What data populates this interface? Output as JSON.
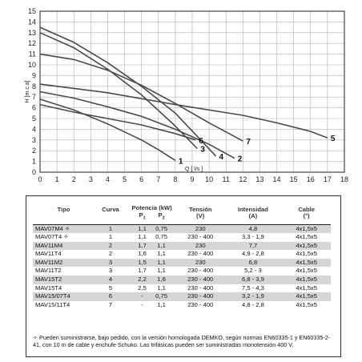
{
  "chart_data": {
    "type": "line",
    "xlabel": "Q [ l/s ]",
    "ylabel": "H [m.c.a]",
    "xlim": [
      0,
      18
    ],
    "ylim": [
      0,
      15
    ],
    "x_ticks": [
      "0",
      "1",
      "2",
      "3",
      "4",
      "5",
      "6",
      "7",
      "8",
      "9",
      "10",
      "11",
      "12",
      "13",
      "14",
      "15",
      "16",
      "17",
      "18"
    ],
    "y_ticks": [
      "0",
      "1",
      "2",
      "3",
      "4",
      "5",
      "6",
      "7",
      "8",
      "9",
      "10",
      "11",
      "12",
      "13",
      "14",
      "15"
    ],
    "grid": true,
    "series": [
      {
        "name": "1",
        "x": [
          0,
          2,
          4,
          6,
          7,
          8.0
        ],
        "y": [
          6.8,
          5.8,
          4.5,
          3.0,
          2.1,
          1.1
        ]
      },
      {
        "name": "2",
        "x": [
          0,
          2,
          4,
          6,
          8,
          10,
          11.5
        ],
        "y": [
          7.5,
          6.9,
          6.1,
          5.2,
          4.0,
          2.6,
          1.3
        ]
      },
      {
        "name": "3",
        "x": [
          0,
          2,
          4,
          6,
          8,
          9.3
        ],
        "y": [
          13.0,
          11.6,
          9.6,
          7.2,
          4.3,
          2.2
        ]
      },
      {
        "name": "4",
        "x": [
          0,
          2,
          4,
          6,
          8,
          10.4
        ],
        "y": [
          13.5,
          12.1,
          10.2,
          8.0,
          5.5,
          1.5
        ]
      },
      {
        "name": "5",
        "x": [
          0,
          4,
          8,
          12,
          14,
          16,
          17.0
        ],
        "y": [
          8.2,
          7.4,
          6.3,
          5.3,
          4.6,
          3.8,
          3.2
        ]
      },
      {
        "name": "6",
        "x": [
          0,
          2,
          4,
          6,
          8,
          9.2
        ],
        "y": [
          6.3,
          5.6,
          5.0,
          4.4,
          3.6,
          3.0
        ]
      },
      {
        "name": "7",
        "x": [
          0,
          2,
          4,
          6,
          8,
          10,
          12.0
        ],
        "y": [
          11.0,
          10.5,
          9.5,
          8.1,
          6.4,
          4.6,
          2.9
        ]
      }
    ],
    "curve_labels": [
      "1",
      "2",
      "3",
      "4",
      "5",
      "6",
      "7"
    ]
  },
  "table": {
    "headers": {
      "tipo": "Tipo",
      "curva": "Curva",
      "potencia": "Potencia (kW)",
      "p1": "P",
      "p1_sub": "1",
      "p2": "P",
      "p2_sub": "2",
      "tension": "Tensión",
      "tension_unit": "(V)",
      "intensidad": "Intensidad",
      "intensidad_unit": "(A)",
      "cable": "Cable",
      "cable_unit": "(°)"
    },
    "rows": [
      {
        "tipo": "MAV07M4 ✧",
        "curva": "1",
        "p1": "1,1",
        "p2": "0,75",
        "tension": "230",
        "intensidad": "4,8",
        "cable": "4x1,5x5"
      },
      {
        "tipo": "MAV07T4 ✧",
        "curva": "1",
        "p1": "1,1",
        "p2": "0,75",
        "tension": "230 - 400",
        "intensidad": "3,3 - 1,9",
        "cable": "4x1,5x5"
      },
      {
        "tipo": "MAV11M4",
        "curva": "2",
        "p1": "1,7",
        "p2": "1,1",
        "tension": "230",
        "intensidad": "7,7",
        "cable": "4x1,5x5"
      },
      {
        "tipo": "MAV11T4",
        "curva": "2",
        "p1": "1,6",
        "p2": "1,1",
        "tension": "230 - 400",
        "intensidad": "4,9 - 2,8",
        "cable": "4x1,5x5"
      },
      {
        "tipo": "MAV11M2",
        "curva": "3",
        "p1": "1,5",
        "p2": "1,1",
        "tension": "230",
        "intensidad": "6,8",
        "cable": "4x1,5x5"
      },
      {
        "tipo": "MAV11T2",
        "curva": "3",
        "p1": "1,7",
        "p2": "1,1",
        "tension": "230 - 400",
        "intensidad": "5,2 - 3",
        "cable": "4x1,5x5"
      },
      {
        "tipo": "MAV15T2",
        "curva": "4",
        "p1": "2,2",
        "p2": "1,6",
        "tension": "230 - 400",
        "intensidad": "6,8 - 3,9",
        "cable": "4x1,5x5"
      },
      {
        "tipo": "MAV15T4",
        "curva": "5",
        "p1": "2,5",
        "p2": "1,1",
        "tension": "230 - 400",
        "intensidad": "7,5 - 4,3",
        "cable": "4x1,5x5"
      },
      {
        "tipo": "MAV15/07T4",
        "curva": "6",
        "p1": "-",
        "p2": "0,75",
        "tension": "230 - 400",
        "intensidad": "3,2 - 1,9",
        "cable": "4x1,5x5"
      },
      {
        "tipo": "MAV15/11T4",
        "curva": "7",
        "p1": "-",
        "p2": "1,1",
        "tension": "230 - 400",
        "intensidad": "4,8 - 2,8",
        "cable": "4x1,5x5"
      }
    ]
  },
  "note": "✧ Pueden suministrarse, bajo pedido, con la versión homologada DEMKO, según normas EN60335-1 y EN60335-2-41, con 10 m de cable y enchufe Schuko. Las trifásicas pueden ser suministradas monotensión 400 V."
}
